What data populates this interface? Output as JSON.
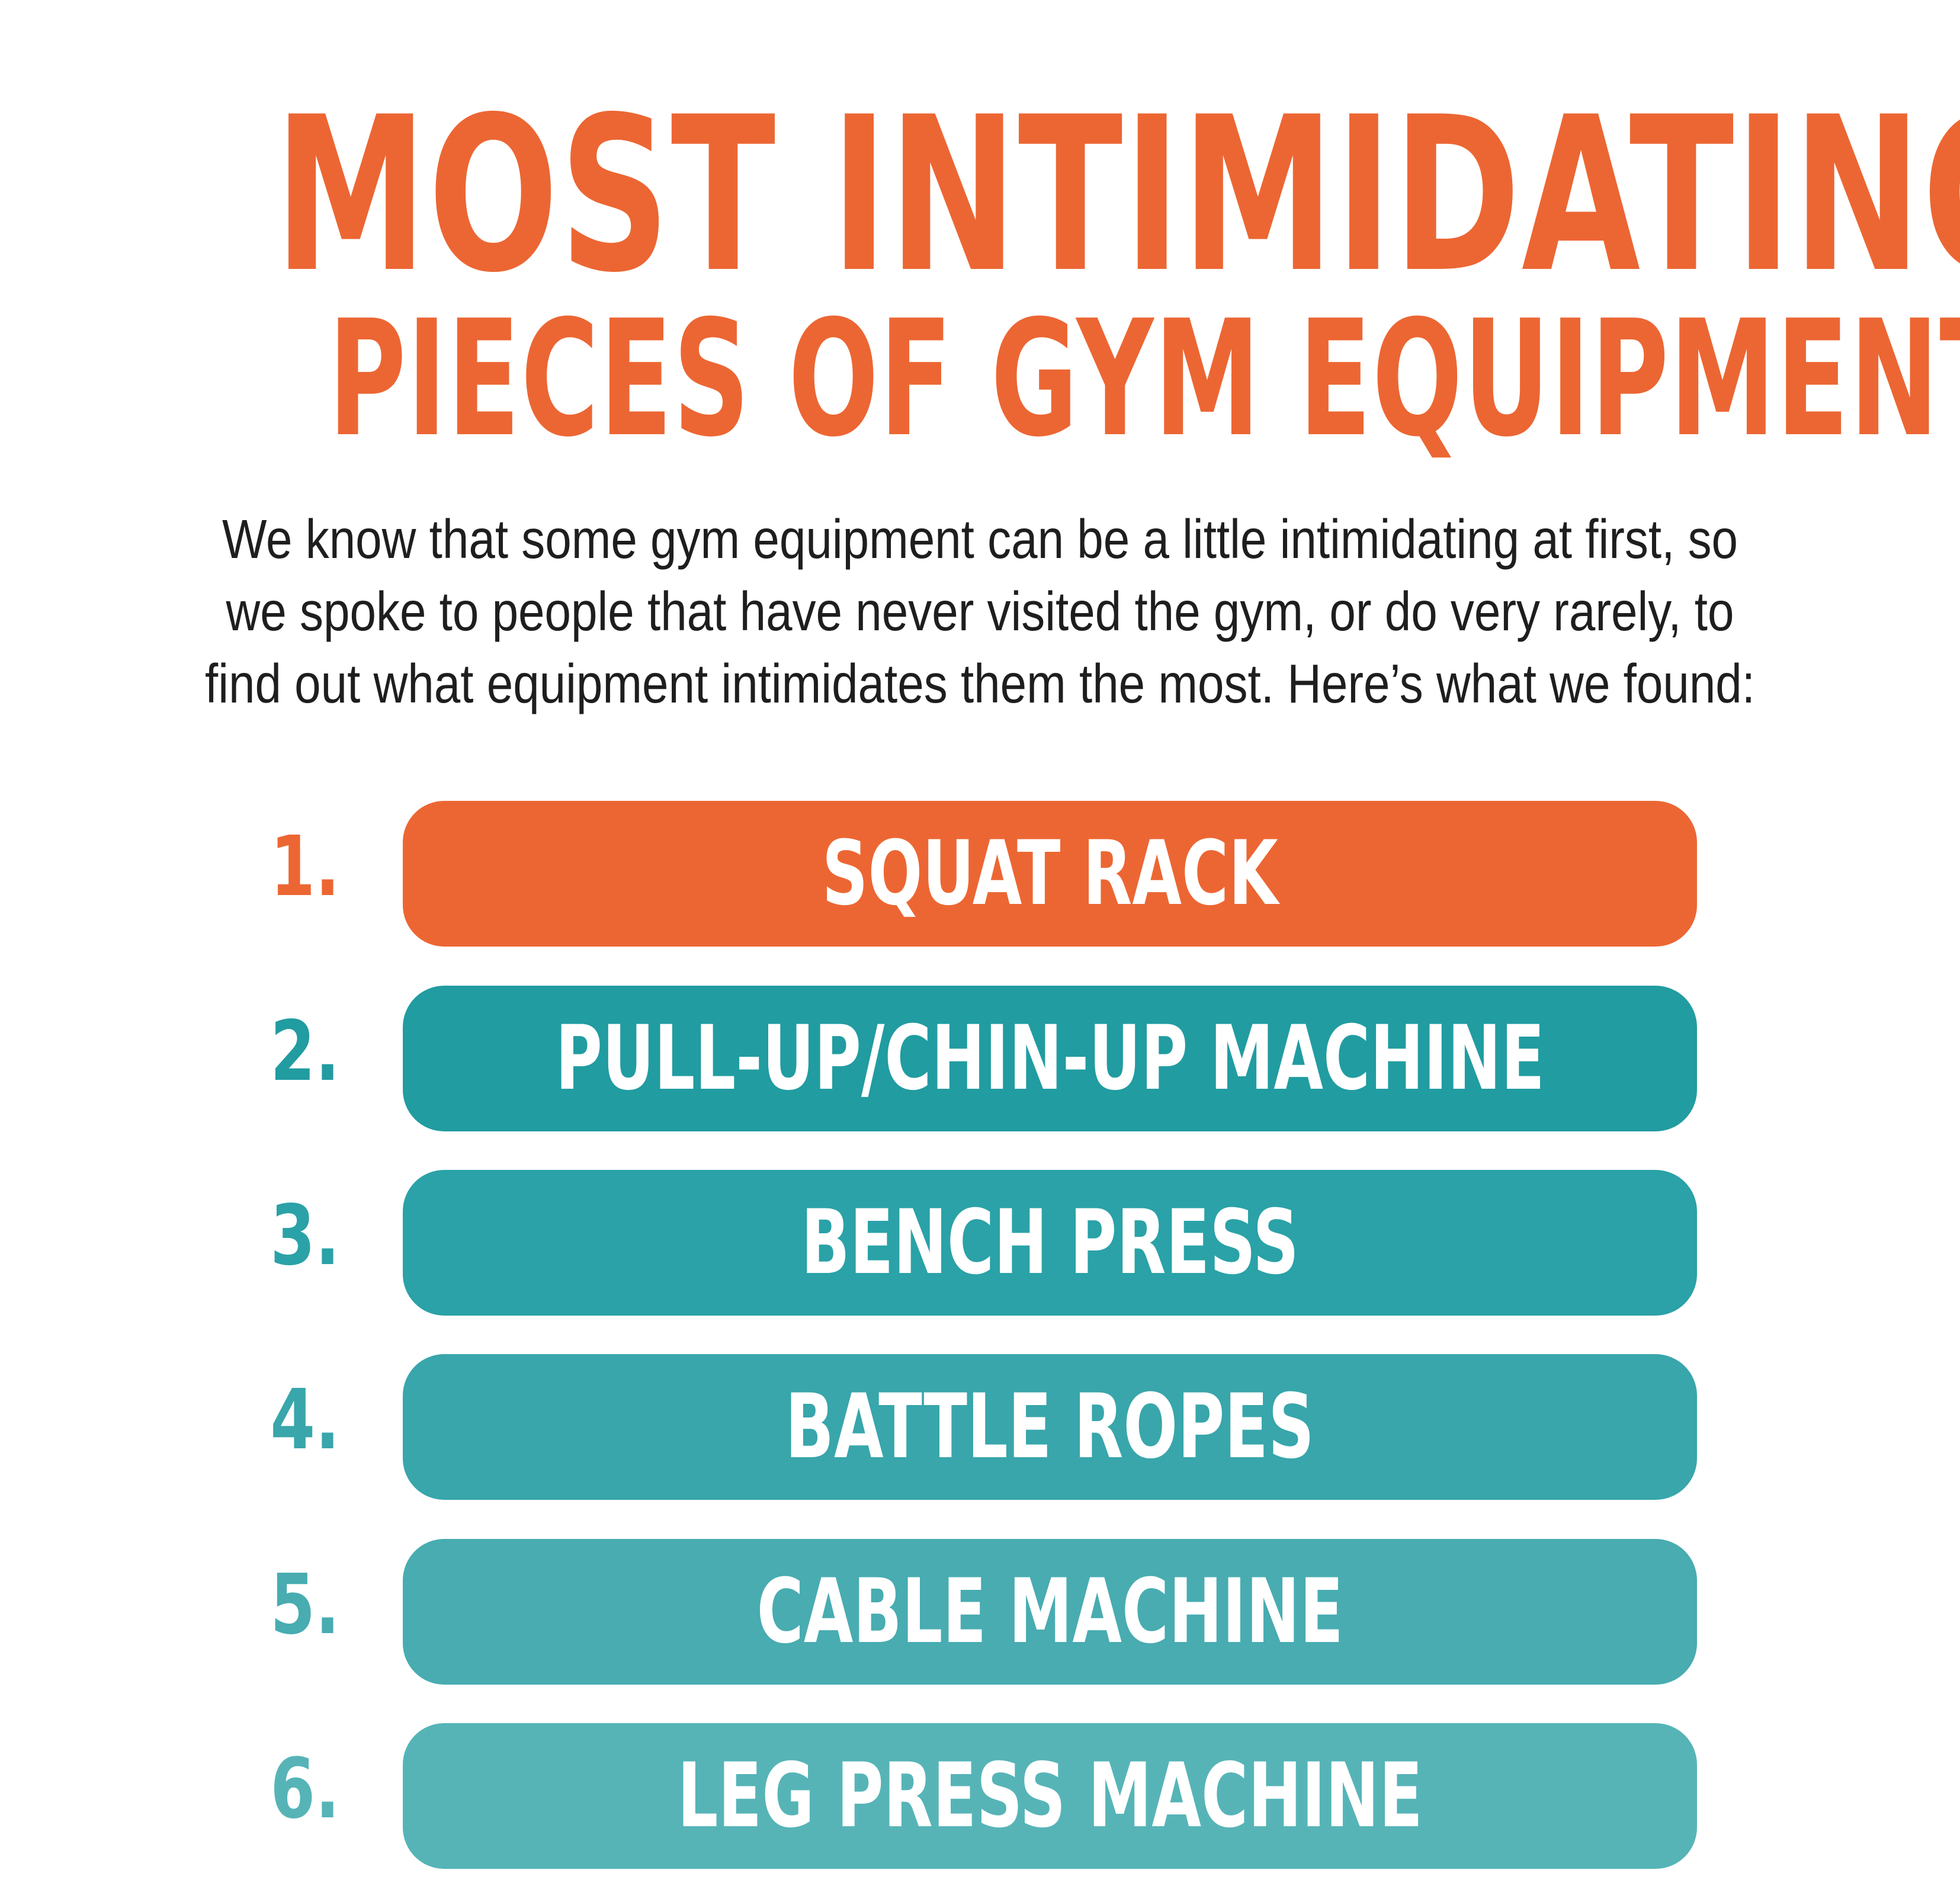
{
  "header": {
    "title_line_1": "MOST INTIMIDATING",
    "title_line_2": "PIECES OF GYM EQUIPMENT"
  },
  "intro": {
    "lines": [
      "We know that some gym equipment can be a little intimidating at first, so",
      "we spoke to people that have never visited the gym, or do very rarely, to",
      "find out what equipment intimidates them the most. Here’s what we found:"
    ]
  },
  "ranking": {
    "items": [
      {
        "rank": "1.",
        "label": "SQUAT RACK",
        "color": "#EC6633"
      },
      {
        "rank": "2.",
        "label": "PULL-UP/CHIN-UP MACHINE",
        "color": "#219CA1"
      },
      {
        "rank": "3.",
        "label": "BENCH PRESS",
        "color": "#2AA2A7"
      },
      {
        "rank": "4.",
        "label": "BATTLE ROPES",
        "color": "#38A6AB"
      },
      {
        "rank": "5.",
        "label": "CABLE MACHINE",
        "color": "#48ACB1"
      },
      {
        "rank": "6.",
        "label": "LEG PRESS MACHINE",
        "color": "#56B4B7"
      }
    ]
  },
  "colors": {
    "accent": "#EC6633",
    "text": "#1E1E1E",
    "background": "#FFFFFF"
  }
}
